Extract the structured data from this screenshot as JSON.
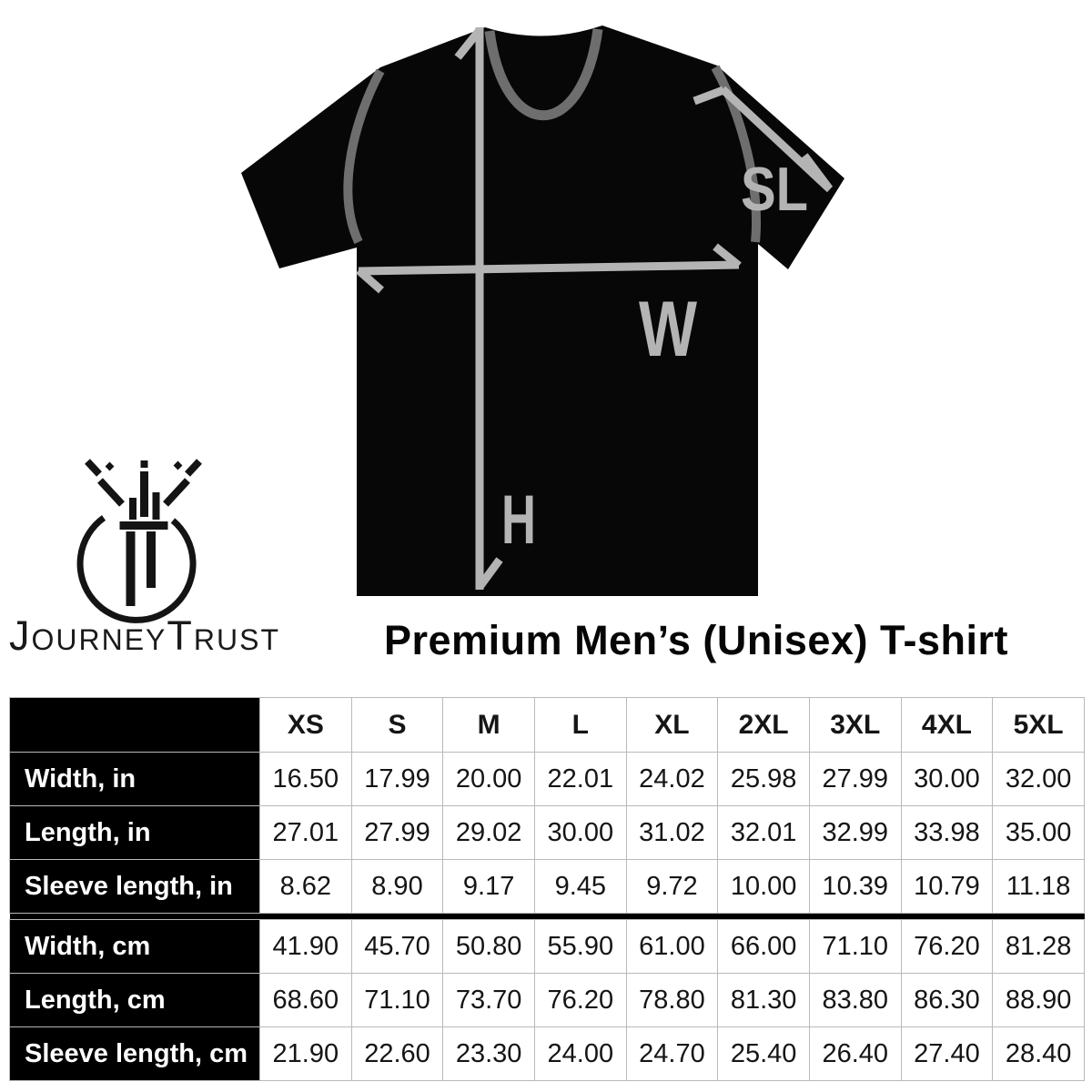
{
  "brand": {
    "name_part1": "Journey",
    "name_part2": "Trust",
    "monogram": "JT"
  },
  "title": "Premium Men’s (Unisex) T-shirt",
  "diagram": {
    "labels": {
      "sleeve_length": "SL",
      "width": "W",
      "height": "H"
    },
    "colors": {
      "shirt": "#070707",
      "seam": "#6e6e6e",
      "arrow": "#b4b4b4"
    }
  },
  "chart_data": {
    "type": "table",
    "title": "Premium Men’s (Unisex) T-shirt size chart",
    "columns": [
      "XS",
      "S",
      "M",
      "L",
      "XL",
      "2XL",
      "3XL",
      "4XL",
      "5XL"
    ],
    "rows": [
      {
        "label": "Width, in",
        "unit_group": "in",
        "values": [
          16.5,
          17.99,
          20.0,
          22.01,
          24.02,
          25.98,
          27.99,
          30.0,
          32.0
        ]
      },
      {
        "label": "Length, in",
        "unit_group": "in",
        "values": [
          27.01,
          27.99,
          29.02,
          30.0,
          31.02,
          32.01,
          32.99,
          33.98,
          35.0
        ]
      },
      {
        "label": "Sleeve length, in",
        "unit_group": "in",
        "values": [
          8.62,
          8.9,
          9.17,
          9.45,
          9.72,
          10.0,
          10.39,
          10.79,
          11.18
        ]
      },
      {
        "label": "Width, cm",
        "unit_group": "cm",
        "values": [
          41.9,
          45.7,
          50.8,
          55.9,
          61.0,
          66.0,
          71.1,
          76.2,
          81.28
        ]
      },
      {
        "label": "Length, cm",
        "unit_group": "cm",
        "values": [
          68.6,
          71.1,
          73.7,
          76.2,
          78.8,
          81.3,
          83.8,
          86.3,
          88.9
        ]
      },
      {
        "label": "Sleeve length, cm",
        "unit_group": "cm",
        "values": [
          21.9,
          22.6,
          23.3,
          24.0,
          24.7,
          25.4,
          26.4,
          27.4,
          28.4
        ]
      }
    ],
    "value_decimals": 2,
    "layout": {
      "label_column_black": true,
      "thick_divider_between_units": true,
      "grid": true
    }
  }
}
